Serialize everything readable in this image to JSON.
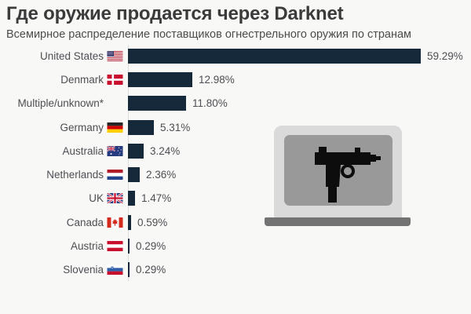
{
  "header": {
    "title": "Где оружие продается через Darknet",
    "subtitle": "Всемирное распределение поставщиков огнестрельного оружия по странам"
  },
  "chart_data": {
    "type": "bar",
    "orientation": "horizontal",
    "title": "Где оружие продается через Darknet",
    "subtitle": "Всемирное распределение поставщиков огнестрельного оружия по странам",
    "categories": [
      "United States",
      "Denmark",
      "Multiple/unknown*",
      "Germany",
      "Australia",
      "Netherlands",
      "UK",
      "Canada",
      "Austria",
      "Slovenia"
    ],
    "values": [
      59.29,
      12.98,
      11.8,
      5.31,
      3.24,
      2.36,
      1.47,
      0.59,
      0.29,
      0.29
    ],
    "value_labels": [
      "59.29%",
      "12.98%",
      "11.80%",
      "5.31%",
      "3.24%",
      "2.36%",
      "1.47%",
      "0.59%",
      "0.29%",
      "0.29%"
    ],
    "flags": [
      "united-states",
      "denmark",
      null,
      "germany",
      "australia",
      "netherlands",
      "united-kingdom",
      "canada",
      "austria",
      "slovenia"
    ],
    "xlabel": "",
    "ylabel": "",
    "xlim": [
      0,
      63
    ],
    "grid": "baseline-only",
    "legend": "none",
    "bar_color": "#16293a"
  },
  "illustration": {
    "name": "laptop-with-uzi",
    "parts": [
      "laptop-body",
      "laptop-screen",
      "laptop-base",
      "uzi-gun-icon"
    ]
  },
  "colors": {
    "background": "#f8f8f6",
    "bar": "#16293a",
    "title_text": "#3b3b3b",
    "subtitle_text": "#4c4c4c",
    "label_text": "#4e4e54",
    "baseline": "#dcdcdc",
    "laptop_body": "#dadada",
    "laptop_screen": "#999999",
    "laptop_base": "#737373",
    "gun": "#0d0d0d"
  }
}
